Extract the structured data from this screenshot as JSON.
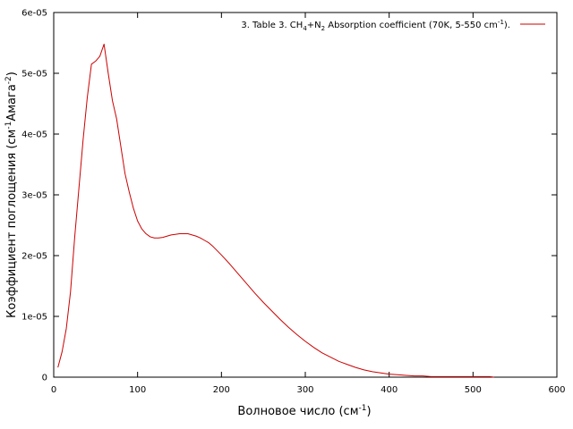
{
  "chart_data": {
    "type": "line",
    "title": "",
    "xlabel": {
      "main": "Волновое число (см",
      "sup": "-1",
      "tail": ")"
    },
    "ylabel": {
      "main": "Коэффициент поглощения (см",
      "sup1": "-1",
      "mid": "Амага",
      "sup2": "-2",
      "tail": ")"
    },
    "xlim": [
      0,
      600
    ],
    "ylim": [
      0,
      6e-05
    ],
    "xticks": [
      0,
      100,
      200,
      300,
      400,
      500,
      600
    ],
    "xtick_labels": [
      "0",
      "100",
      "200",
      "300",
      "400",
      "500",
      "600"
    ],
    "yticks": [
      0,
      1e-05,
      2e-05,
      3e-05,
      4e-05,
      5e-05,
      6e-05
    ],
    "ytick_labels": [
      "0",
      "1e-05",
      "2e-05",
      "3e-05",
      "4e-05",
      "5e-05",
      "6e-05"
    ],
    "grid": false,
    "legend_position": "top-right",
    "legend": {
      "prefix": "3. Table 3. CH",
      "sub1": "4",
      "mid": "+N",
      "sub2": "2",
      "suffix": " Absorption coefficient (70K, 5-550 cm",
      "sup": "-1",
      "end": ")."
    },
    "series": [
      {
        "color": "#cc0000",
        "x": [
          5,
          10,
          15,
          20,
          25,
          30,
          35,
          40,
          45,
          50,
          55,
          60,
          65,
          70,
          75,
          80,
          85,
          90,
          95,
          100,
          105,
          110,
          115,
          120,
          125,
          130,
          135,
          140,
          145,
          150,
          155,
          160,
          165,
          170,
          175,
          180,
          185,
          190,
          200,
          210,
          220,
          230,
          240,
          250,
          260,
          270,
          280,
          290,
          300,
          310,
          320,
          330,
          340,
          350,
          360,
          370,
          380,
          390,
          400,
          410,
          420,
          430,
          440,
          450,
          460,
          470,
          480,
          490,
          500,
          510,
          520,
          525
        ],
        "y": [
          1.6e-06,
          4.2e-06,
          8e-06,
          1.4e-05,
          2.3e-05,
          3.1e-05,
          3.9e-05,
          4.6e-05,
          5.15e-05,
          5.2e-05,
          5.28e-05,
          5.48e-05,
          5e-05,
          4.55e-05,
          4.25e-05,
          3.8e-05,
          3.35e-05,
          3.05e-05,
          2.78e-05,
          2.57e-05,
          2.44e-05,
          2.36e-05,
          2.31e-05,
          2.29e-05,
          2.29e-05,
          2.3e-05,
          2.32e-05,
          2.34e-05,
          2.35e-05,
          2.36e-05,
          2.36e-05,
          2.36e-05,
          2.34e-05,
          2.32e-05,
          2.29e-05,
          2.25e-05,
          2.21e-05,
          2.15e-05,
          2.01e-05,
          1.86e-05,
          1.7e-05,
          1.54e-05,
          1.38e-05,
          1.23e-05,
          1.09e-05,
          9.5e-06,
          8.2e-06,
          7e-06,
          5.9e-06,
          4.9e-06,
          4e-06,
          3.3e-06,
          2.6e-06,
          2.1e-06,
          1.6e-06,
          1.2e-06,
          9e-07,
          7e-07,
          5e-07,
          4e-07,
          3e-07,
          2e-07,
          2e-07,
          1e-07,
          1e-07,
          1e-07,
          1e-07,
          1e-07,
          1e-07,
          1e-07,
          1e-07,
          0
        ]
      }
    ]
  }
}
